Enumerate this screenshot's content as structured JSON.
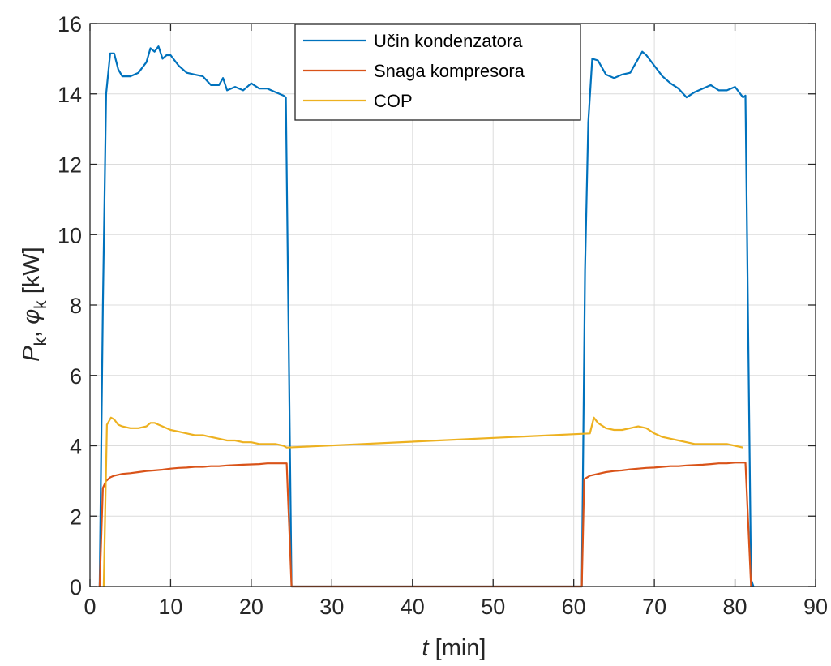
{
  "chart_data": {
    "type": "line",
    "xlim": [
      0,
      90
    ],
    "ylim": [
      0,
      16
    ],
    "x_ticks": [
      0,
      10,
      20,
      30,
      40,
      50,
      60,
      70,
      80,
      90
    ],
    "y_ticks": [
      0,
      2,
      4,
      6,
      8,
      10,
      12,
      14,
      16
    ],
    "x_tick_labels": [
      "0",
      "10",
      "20",
      "30",
      "40",
      "50",
      "60",
      "70",
      "80",
      "90"
    ],
    "y_tick_labels": [
      "0",
      "2",
      "4",
      "6",
      "8",
      "10",
      "12",
      "14",
      "16"
    ],
    "xlabel": {
      "italic": "t",
      "rest": " [min]"
    },
    "ylabel": {
      "p": "P",
      "sub1": "k",
      "sep": ", ",
      "phi": "φ",
      "sub2": "k",
      "unit": " [kW]"
    },
    "grid": true,
    "legend_position": "top-center",
    "series": [
      {
        "name": "Učin kondenzatora",
        "color": "#0072BD",
        "x": [
          1.2,
          1.6,
          2.0,
          2.5,
          3.0,
          3.5,
          4.0,
          5.0,
          6.0,
          7.0,
          7.5,
          8.0,
          8.5,
          9.0,
          9.5,
          10.0,
          11.0,
          12.0,
          13.0,
          14.0,
          15.0,
          16.0,
          16.5,
          17.0,
          18.0,
          19.0,
          20.0,
          21.0,
          22.0,
          23.0,
          24.0,
          24.3,
          25.0,
          30,
          40,
          50,
          60,
          61.0,
          61.4,
          61.8,
          62.3,
          63.0,
          64.0,
          65.0,
          66.0,
          67.0,
          68.0,
          68.5,
          69.0,
          70.0,
          71.0,
          72.0,
          73.0,
          74.0,
          75.0,
          76.0,
          77.0,
          78.0,
          79.0,
          80.0,
          81.0,
          81.3,
          82.0,
          82.3
        ],
        "y": [
          0,
          8,
          14.0,
          15.15,
          15.15,
          14.7,
          14.5,
          14.5,
          14.6,
          14.9,
          15.3,
          15.2,
          15.35,
          15.0,
          15.1,
          15.1,
          14.8,
          14.6,
          14.55,
          14.5,
          14.25,
          14.25,
          14.45,
          14.1,
          14.2,
          14.1,
          14.3,
          14.15,
          14.15,
          14.05,
          13.95,
          13.9,
          0,
          0,
          0,
          0,
          0,
          0,
          9.0,
          13.2,
          15.0,
          14.95,
          14.55,
          14.45,
          14.55,
          14.6,
          15.0,
          15.2,
          15.1,
          14.8,
          14.5,
          14.3,
          14.15,
          13.9,
          14.05,
          14.15,
          14.25,
          14.1,
          14.1,
          14.2,
          13.9,
          13.95,
          0.2,
          0
        ]
      },
      {
        "name": "Snaga kompresora",
        "color": "#D95319",
        "x": [
          1.2,
          1.6,
          2.0,
          2.5,
          3.0,
          4.0,
          5.0,
          6.0,
          7.0,
          8.0,
          9.0,
          10.0,
          11.0,
          12.0,
          13.0,
          14.0,
          15.0,
          16.0,
          17.0,
          18.0,
          19.0,
          20.0,
          21.0,
          22.0,
          23.0,
          24.0,
          24.4,
          25.0,
          30,
          40,
          50,
          60,
          61.0,
          61.3,
          62.0,
          63.0,
          64.0,
          65.0,
          66.0,
          67.0,
          68.0,
          69.0,
          70.0,
          71.0,
          72.0,
          73.0,
          74.0,
          75.0,
          76.0,
          77.0,
          78.0,
          79.0,
          80.0,
          81.0,
          81.3,
          82.0
        ],
        "y": [
          0,
          2.8,
          3.0,
          3.1,
          3.15,
          3.2,
          3.22,
          3.25,
          3.28,
          3.3,
          3.32,
          3.35,
          3.37,
          3.38,
          3.4,
          3.4,
          3.42,
          3.42,
          3.44,
          3.45,
          3.46,
          3.47,
          3.48,
          3.5,
          3.5,
          3.5,
          3.5,
          0,
          0,
          0,
          0,
          0,
          0,
          3.05,
          3.15,
          3.2,
          3.25,
          3.28,
          3.3,
          3.33,
          3.35,
          3.37,
          3.38,
          3.4,
          3.42,
          3.42,
          3.44,
          3.45,
          3.46,
          3.48,
          3.5,
          3.5,
          3.52,
          3.52,
          3.52,
          0
        ]
      },
      {
        "name": "COP",
        "color": "#EDB120",
        "x": [
          1.7,
          2.1,
          2.6,
          3.0,
          3.5,
          4.0,
          5.0,
          6.0,
          7.0,
          7.5,
          8.0,
          8.5,
          9.0,
          10.0,
          11.0,
          12.0,
          13.0,
          14.0,
          15.0,
          16.0,
          17.0,
          18.0,
          19.0,
          20.0,
          21.0,
          22.0,
          23.0,
          24.0,
          24.4,
          62.0,
          62.5,
          63.0,
          64.0,
          65.0,
          66.0,
          67.0,
          68.0,
          69.0,
          70.0,
          71.0,
          72.0,
          73.0,
          74.0,
          75.0,
          76.0,
          77.0,
          78.0,
          79.0,
          80.0,
          81.0
        ],
        "y": [
          0,
          4.6,
          4.8,
          4.75,
          4.6,
          4.55,
          4.5,
          4.5,
          4.55,
          4.65,
          4.65,
          4.6,
          4.55,
          4.45,
          4.4,
          4.35,
          4.3,
          4.3,
          4.25,
          4.2,
          4.15,
          4.15,
          4.1,
          4.1,
          4.05,
          4.05,
          4.05,
          4.0,
          3.95,
          4.35,
          4.8,
          4.65,
          4.5,
          4.45,
          4.45,
          4.5,
          4.55,
          4.5,
          4.35,
          4.25,
          4.2,
          4.15,
          4.1,
          4.05,
          4.05,
          4.05,
          4.05,
          4.05,
          4.0,
          3.95
        ]
      }
    ]
  }
}
